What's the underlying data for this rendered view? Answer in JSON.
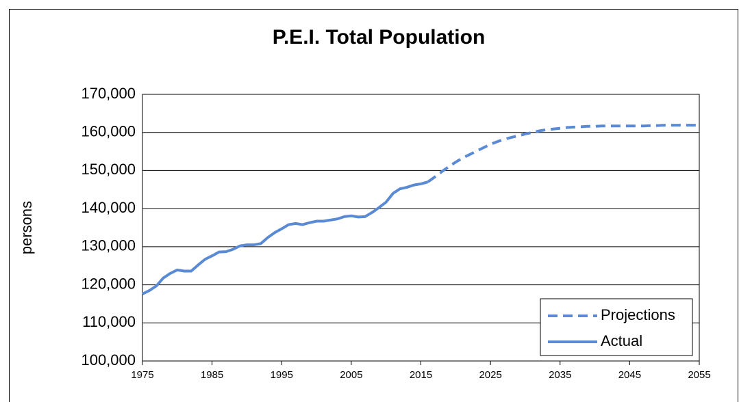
{
  "chart_data": {
    "type": "line",
    "title": "P.E.I. Total Population",
    "y_label": "persons",
    "xlim": [
      1975,
      2055
    ],
    "xticks": [
      1975,
      1985,
      1995,
      2005,
      2015,
      2025,
      2035,
      2045,
      2055
    ],
    "ylim": [
      100000,
      170000
    ],
    "yticks": [
      {
        "value": 100000,
        "label": "100,000"
      },
      {
        "value": 110000,
        "label": "110,000"
      },
      {
        "value": 120000,
        "label": "120,000"
      },
      {
        "value": 130000,
        "label": "130,000"
      },
      {
        "value": 140000,
        "label": "140,000"
      },
      {
        "value": 150000,
        "label": "150,000"
      },
      {
        "value": 160000,
        "label": "160,000"
      },
      {
        "value": 170000,
        "label": "170,000"
      }
    ],
    "grid": true,
    "legend": "lower right",
    "series": [
      {
        "name": "Projections",
        "color": "#5a8ad3",
        "dashed": true,
        "x": [
          2016,
          2017,
          2018,
          2019,
          2020,
          2021,
          2022,
          2023,
          2024,
          2025,
          2026,
          2027,
          2028,
          2029,
          2030,
          2031,
          2032,
          2033,
          2034,
          2035,
          2036,
          2037,
          2038,
          2039,
          2040,
          2041,
          2042,
          2043,
          2044,
          2045,
          2046,
          2047,
          2048,
          2049,
          2050,
          2051,
          2052,
          2053,
          2054,
          2055
        ],
        "values": [
          147000,
          148300,
          149700,
          151000,
          152200,
          153300,
          154200,
          155100,
          156000,
          156900,
          157600,
          158200,
          158700,
          159100,
          159600,
          160000,
          160400,
          160700,
          160900,
          161100,
          161300,
          161400,
          161500,
          161600,
          161600,
          161700,
          161700,
          161700,
          161700,
          161700,
          161700,
          161700,
          161800,
          161800,
          161900,
          161900,
          161900,
          161900,
          161900,
          161900
        ]
      },
      {
        "name": "Actual",
        "color": "#5a8ad3",
        "dashed": false,
        "x": [
          1975,
          1976,
          1977,
          1978,
          1979,
          1980,
          1981,
          1982,
          1983,
          1984,
          1985,
          1986,
          1987,
          1988,
          1989,
          1990,
          1991,
          1992,
          1993,
          1994,
          1995,
          1996,
          1997,
          1998,
          1999,
          2000,
          2001,
          2002,
          2003,
          2004,
          2005,
          2006,
          2007,
          2008,
          2009,
          2010,
          2011,
          2012,
          2013,
          2014,
          2015,
          2016
        ],
        "values": [
          117600,
          118500,
          119700,
          121800,
          123000,
          123900,
          123600,
          123600,
          125200,
          126700,
          127600,
          128600,
          128700,
          129300,
          130200,
          130500,
          130500,
          130800,
          132400,
          133700,
          134700,
          135800,
          136100,
          135800,
          136300,
          136700,
          136700,
          137000,
          137300,
          137900,
          138100,
          137800,
          137900,
          139000,
          140300,
          141700,
          144000,
          145200,
          145600,
          146200,
          146500,
          147000
        ]
      }
    ]
  }
}
